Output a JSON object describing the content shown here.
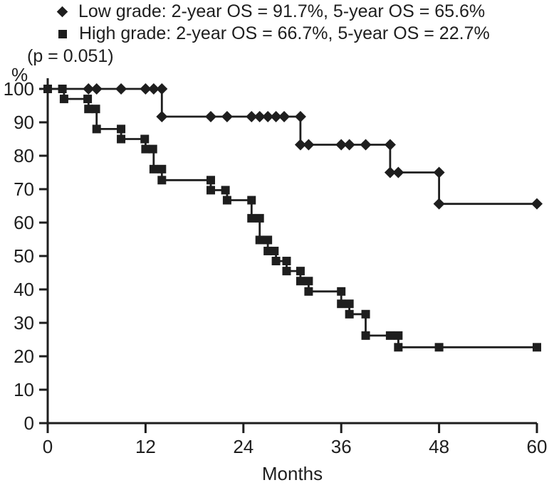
{
  "legend": {
    "low": "Low grade: 2-year OS = 91.7%, 5-year OS = 65.6%",
    "high": "High grade: 2-year OS = 66.7%, 5-year OS = 22.7%",
    "p_value": "(p = 0.051)"
  },
  "chart_data": {
    "type": "line",
    "subtype": "kaplan-meier-step",
    "title": "",
    "xlabel": "Months",
    "ylabel": "%",
    "xlim": [
      0,
      60
    ],
    "ylim": [
      0,
      100
    ],
    "x_ticks": [
      0,
      12,
      24,
      36,
      48,
      60
    ],
    "y_ticks": [
      0,
      10,
      20,
      30,
      40,
      50,
      60,
      70,
      80,
      90,
      100
    ],
    "grid": false,
    "legend_position": "top-left",
    "ink_color": "#1e1e1e",
    "series": [
      {
        "name": "Low grade",
        "marker": "diamond",
        "summary": {
          "os_2yr": "91.7%",
          "os_5yr": "65.6%"
        },
        "steps": [
          [
            0,
            100
          ],
          [
            14,
            100
          ],
          [
            14,
            91.7
          ],
          [
            31,
            91.7
          ],
          [
            31,
            83.3
          ],
          [
            42,
            83.3
          ],
          [
            42,
            75
          ],
          [
            48,
            75
          ],
          [
            48,
            65.6
          ],
          [
            60,
            65.6
          ]
        ],
        "markers": [
          [
            5,
            100
          ],
          [
            6,
            100
          ],
          [
            9,
            100
          ],
          [
            12,
            100
          ],
          [
            13,
            100
          ],
          [
            14,
            100
          ],
          [
            14,
            91.7
          ],
          [
            20,
            91.7
          ],
          [
            22,
            91.7
          ],
          [
            25,
            91.7
          ],
          [
            26,
            91.7
          ],
          [
            27,
            91.7
          ],
          [
            28,
            91.7
          ],
          [
            29,
            91.7
          ],
          [
            31,
            91.7
          ],
          [
            31,
            83.3
          ],
          [
            32,
            83.3
          ],
          [
            36,
            83.3
          ],
          [
            37,
            83.3
          ],
          [
            39,
            83.3
          ],
          [
            42,
            83.3
          ],
          [
            42,
            75
          ],
          [
            43,
            75
          ],
          [
            48,
            75
          ],
          [
            48,
            65.6
          ],
          [
            60,
            65.6
          ]
        ]
      },
      {
        "name": "High grade",
        "marker": "square",
        "summary": {
          "os_2yr": "66.7%",
          "os_5yr": "22.7%"
        },
        "steps": [
          [
            0,
            100
          ],
          [
            2,
            100
          ],
          [
            2,
            97
          ],
          [
            5,
            97
          ],
          [
            5,
            94
          ],
          [
            6,
            94
          ],
          [
            6,
            88
          ],
          [
            9,
            88
          ],
          [
            9,
            85
          ],
          [
            12,
            85
          ],
          [
            12,
            82
          ],
          [
            13,
            82
          ],
          [
            13,
            76
          ],
          [
            14,
            76
          ],
          [
            14,
            72.7
          ],
          [
            20,
            72.7
          ],
          [
            20,
            69.7
          ],
          [
            22,
            69.7
          ],
          [
            22,
            66.7
          ],
          [
            25,
            66.7
          ],
          [
            25,
            61.3
          ],
          [
            26,
            61.3
          ],
          [
            26,
            54.8
          ],
          [
            27,
            54.8
          ],
          [
            27,
            51.5
          ],
          [
            28,
            51.5
          ],
          [
            28,
            48.5
          ],
          [
            29.3,
            48.5
          ],
          [
            29.3,
            45.5
          ],
          [
            31,
            45.5
          ],
          [
            31,
            42.5
          ],
          [
            32,
            42.5
          ],
          [
            32,
            39.4
          ],
          [
            36,
            39.4
          ],
          [
            36,
            35.7
          ],
          [
            37,
            35.7
          ],
          [
            37,
            32.6
          ],
          [
            39,
            32.6
          ],
          [
            39,
            26.2
          ],
          [
            43,
            26.2
          ],
          [
            43,
            22.7
          ],
          [
            60,
            22.7
          ]
        ],
        "markers": [
          [
            0,
            100
          ],
          [
            1.8,
            100
          ],
          [
            2,
            97
          ],
          [
            4.9,
            97
          ],
          [
            5,
            94
          ],
          [
            5.9,
            94
          ],
          [
            6,
            88
          ],
          [
            9,
            88
          ],
          [
            9,
            85
          ],
          [
            11.9,
            85
          ],
          [
            12,
            82
          ],
          [
            12.9,
            82
          ],
          [
            13,
            76
          ],
          [
            14,
            76
          ],
          [
            14,
            72.7
          ],
          [
            20,
            72.7
          ],
          [
            20,
            69.7
          ],
          [
            21.8,
            69.7
          ],
          [
            22,
            66.7
          ],
          [
            25,
            66.7
          ],
          [
            25,
            61.3
          ],
          [
            26,
            61.3
          ],
          [
            26,
            54.8
          ],
          [
            27,
            54.8
          ],
          [
            27,
            51.5
          ],
          [
            27.8,
            51.5
          ],
          [
            28,
            48.5
          ],
          [
            29.3,
            48.5
          ],
          [
            29.3,
            45.5
          ],
          [
            31,
            45.5
          ],
          [
            31,
            42.5
          ],
          [
            32,
            42.5
          ],
          [
            32,
            39.4
          ],
          [
            36,
            39.4
          ],
          [
            36,
            35.7
          ],
          [
            37,
            35.7
          ],
          [
            37,
            32.6
          ],
          [
            39,
            32.6
          ],
          [
            39,
            26.2
          ],
          [
            42,
            26.2
          ],
          [
            43,
            26.2
          ],
          [
            43,
            22.7
          ],
          [
            48,
            22.7
          ],
          [
            60,
            22.7
          ]
        ]
      }
    ],
    "p_value_text": "(p = 0.051)"
  }
}
